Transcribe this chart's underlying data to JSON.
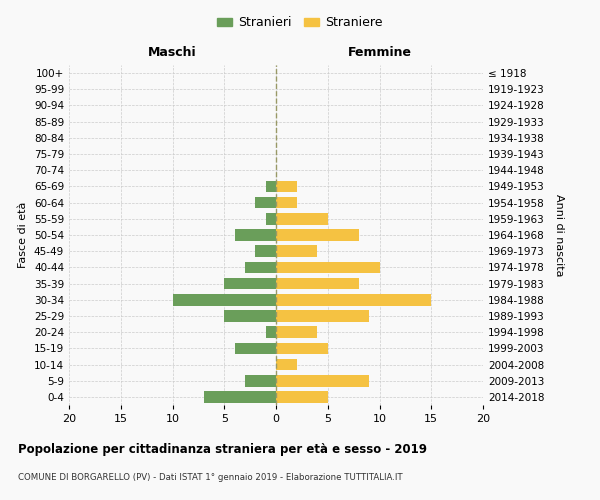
{
  "age_groups": [
    "0-4",
    "5-9",
    "10-14",
    "15-19",
    "20-24",
    "25-29",
    "30-34",
    "35-39",
    "40-44",
    "45-49",
    "50-54",
    "55-59",
    "60-64",
    "65-69",
    "70-74",
    "75-79",
    "80-84",
    "85-89",
    "90-94",
    "95-99",
    "100+"
  ],
  "birth_years": [
    "2014-2018",
    "2009-2013",
    "2004-2008",
    "1999-2003",
    "1994-1998",
    "1989-1993",
    "1984-1988",
    "1979-1983",
    "1974-1978",
    "1969-1973",
    "1964-1968",
    "1959-1963",
    "1954-1958",
    "1949-1953",
    "1944-1948",
    "1939-1943",
    "1934-1938",
    "1929-1933",
    "1924-1928",
    "1919-1923",
    "≤ 1918"
  ],
  "males": [
    7,
    3,
    0,
    4,
    1,
    5,
    10,
    5,
    3,
    2,
    4,
    1,
    2,
    1,
    0,
    0,
    0,
    0,
    0,
    0,
    0
  ],
  "females": [
    5,
    9,
    2,
    5,
    4,
    9,
    15,
    8,
    10,
    4,
    8,
    5,
    2,
    2,
    0,
    0,
    0,
    0,
    0,
    0,
    0
  ],
  "male_color": "#6a9e5a",
  "female_color": "#f5c242",
  "background_color": "#f9f9f9",
  "grid_color": "#cccccc",
  "title": "Popolazione per cittadinanza straniera per età e sesso - 2019",
  "subtitle": "COMUNE DI BORGARELLO (PV) - Dati ISTAT 1° gennaio 2019 - Elaborazione TUTTITALIA.IT",
  "xlabel_left": "Maschi",
  "xlabel_right": "Femmine",
  "ylabel_left": "Fasce di età",
  "ylabel_right": "Anni di nascita",
  "legend_male": "Stranieri",
  "legend_female": "Straniere",
  "xlim": 20
}
